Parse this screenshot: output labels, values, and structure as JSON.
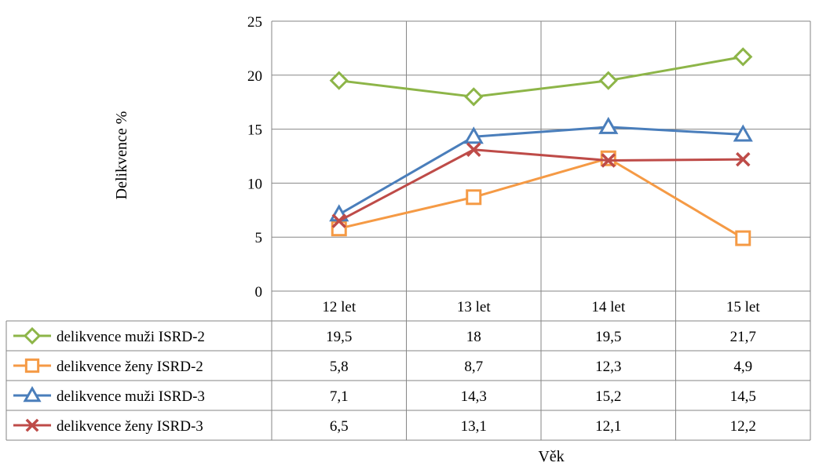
{
  "chart_data": {
    "type": "line",
    "categories": [
      "12 let",
      "13 let",
      "14 let",
      "15 let"
    ],
    "series": [
      {
        "name": "delikvence muži ISRD-2",
        "values": [
          19.5,
          18,
          19.5,
          21.7
        ],
        "labels": [
          "19,5",
          "18",
          "19,5",
          "21,7"
        ],
        "color": "#8DB548",
        "marker": "diamond"
      },
      {
        "name": "delikvence ženy ISRD-2",
        "values": [
          5.8,
          8.7,
          12.3,
          4.9
        ],
        "labels": [
          "5,8",
          "8,7",
          "12,3",
          "4,9"
        ],
        "color": "#F59A45",
        "marker": "square"
      },
      {
        "name": "delikvence muži ISRD-3",
        "values": [
          7.1,
          14.3,
          15.2,
          14.5
        ],
        "labels": [
          "7,1",
          "14,3",
          "15,2",
          "14,5"
        ],
        "color": "#4A7EBB",
        "marker": "triangle"
      },
      {
        "name": "delikvence ženy ISRD-3",
        "values": [
          6.5,
          13.1,
          12.1,
          12.2
        ],
        "labels": [
          "6,5",
          "13,1",
          "12,1",
          "12,2"
        ],
        "color": "#BE4B48",
        "marker": "x"
      }
    ],
    "ylim": [
      0,
      25
    ],
    "yticks": [
      "0",
      "5",
      "10",
      "15",
      "20",
      "25"
    ],
    "ytick_values": [
      0,
      5,
      10,
      15,
      20,
      25
    ],
    "ylabel": "Delikvence %",
    "xlabel": "Věk",
    "grid": true,
    "legend": "data-table",
    "table_border_color": "#868686",
    "grid_color": "#868686"
  }
}
